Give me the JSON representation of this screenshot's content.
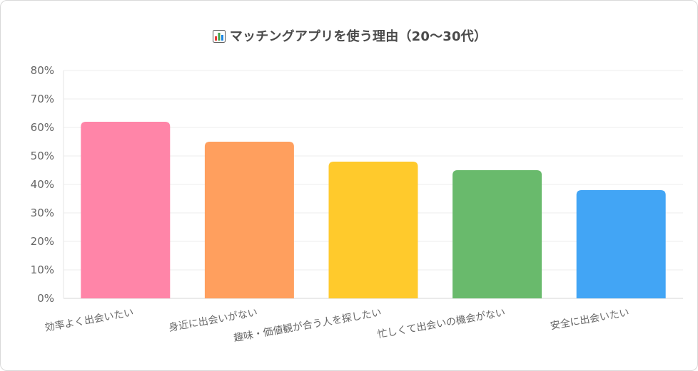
{
  "chart_data": {
    "type": "bar",
    "title": "マッチングアプリを使う理由（20〜30代）",
    "title_icon": "bar-chart-icon",
    "categories": [
      "効率よく出会いたい",
      "身近に出会いがない",
      "趣味・価値観が合う人を探したい",
      "忙しくて出会いの機会がない",
      "安全に出会いたい"
    ],
    "values": [
      62,
      55,
      48,
      45,
      38
    ],
    "colors": [
      "#ff85a8",
      "#ff9f5e",
      "#ffca2c",
      "#69ba6c",
      "#42a5f5"
    ],
    "ylim": [
      0,
      80
    ],
    "yticks": [
      "0%",
      "10%",
      "20%",
      "30%",
      "40%",
      "50%",
      "60%",
      "70%",
      "80%"
    ],
    "grid": true,
    "xlabel": "",
    "ylabel": ""
  }
}
